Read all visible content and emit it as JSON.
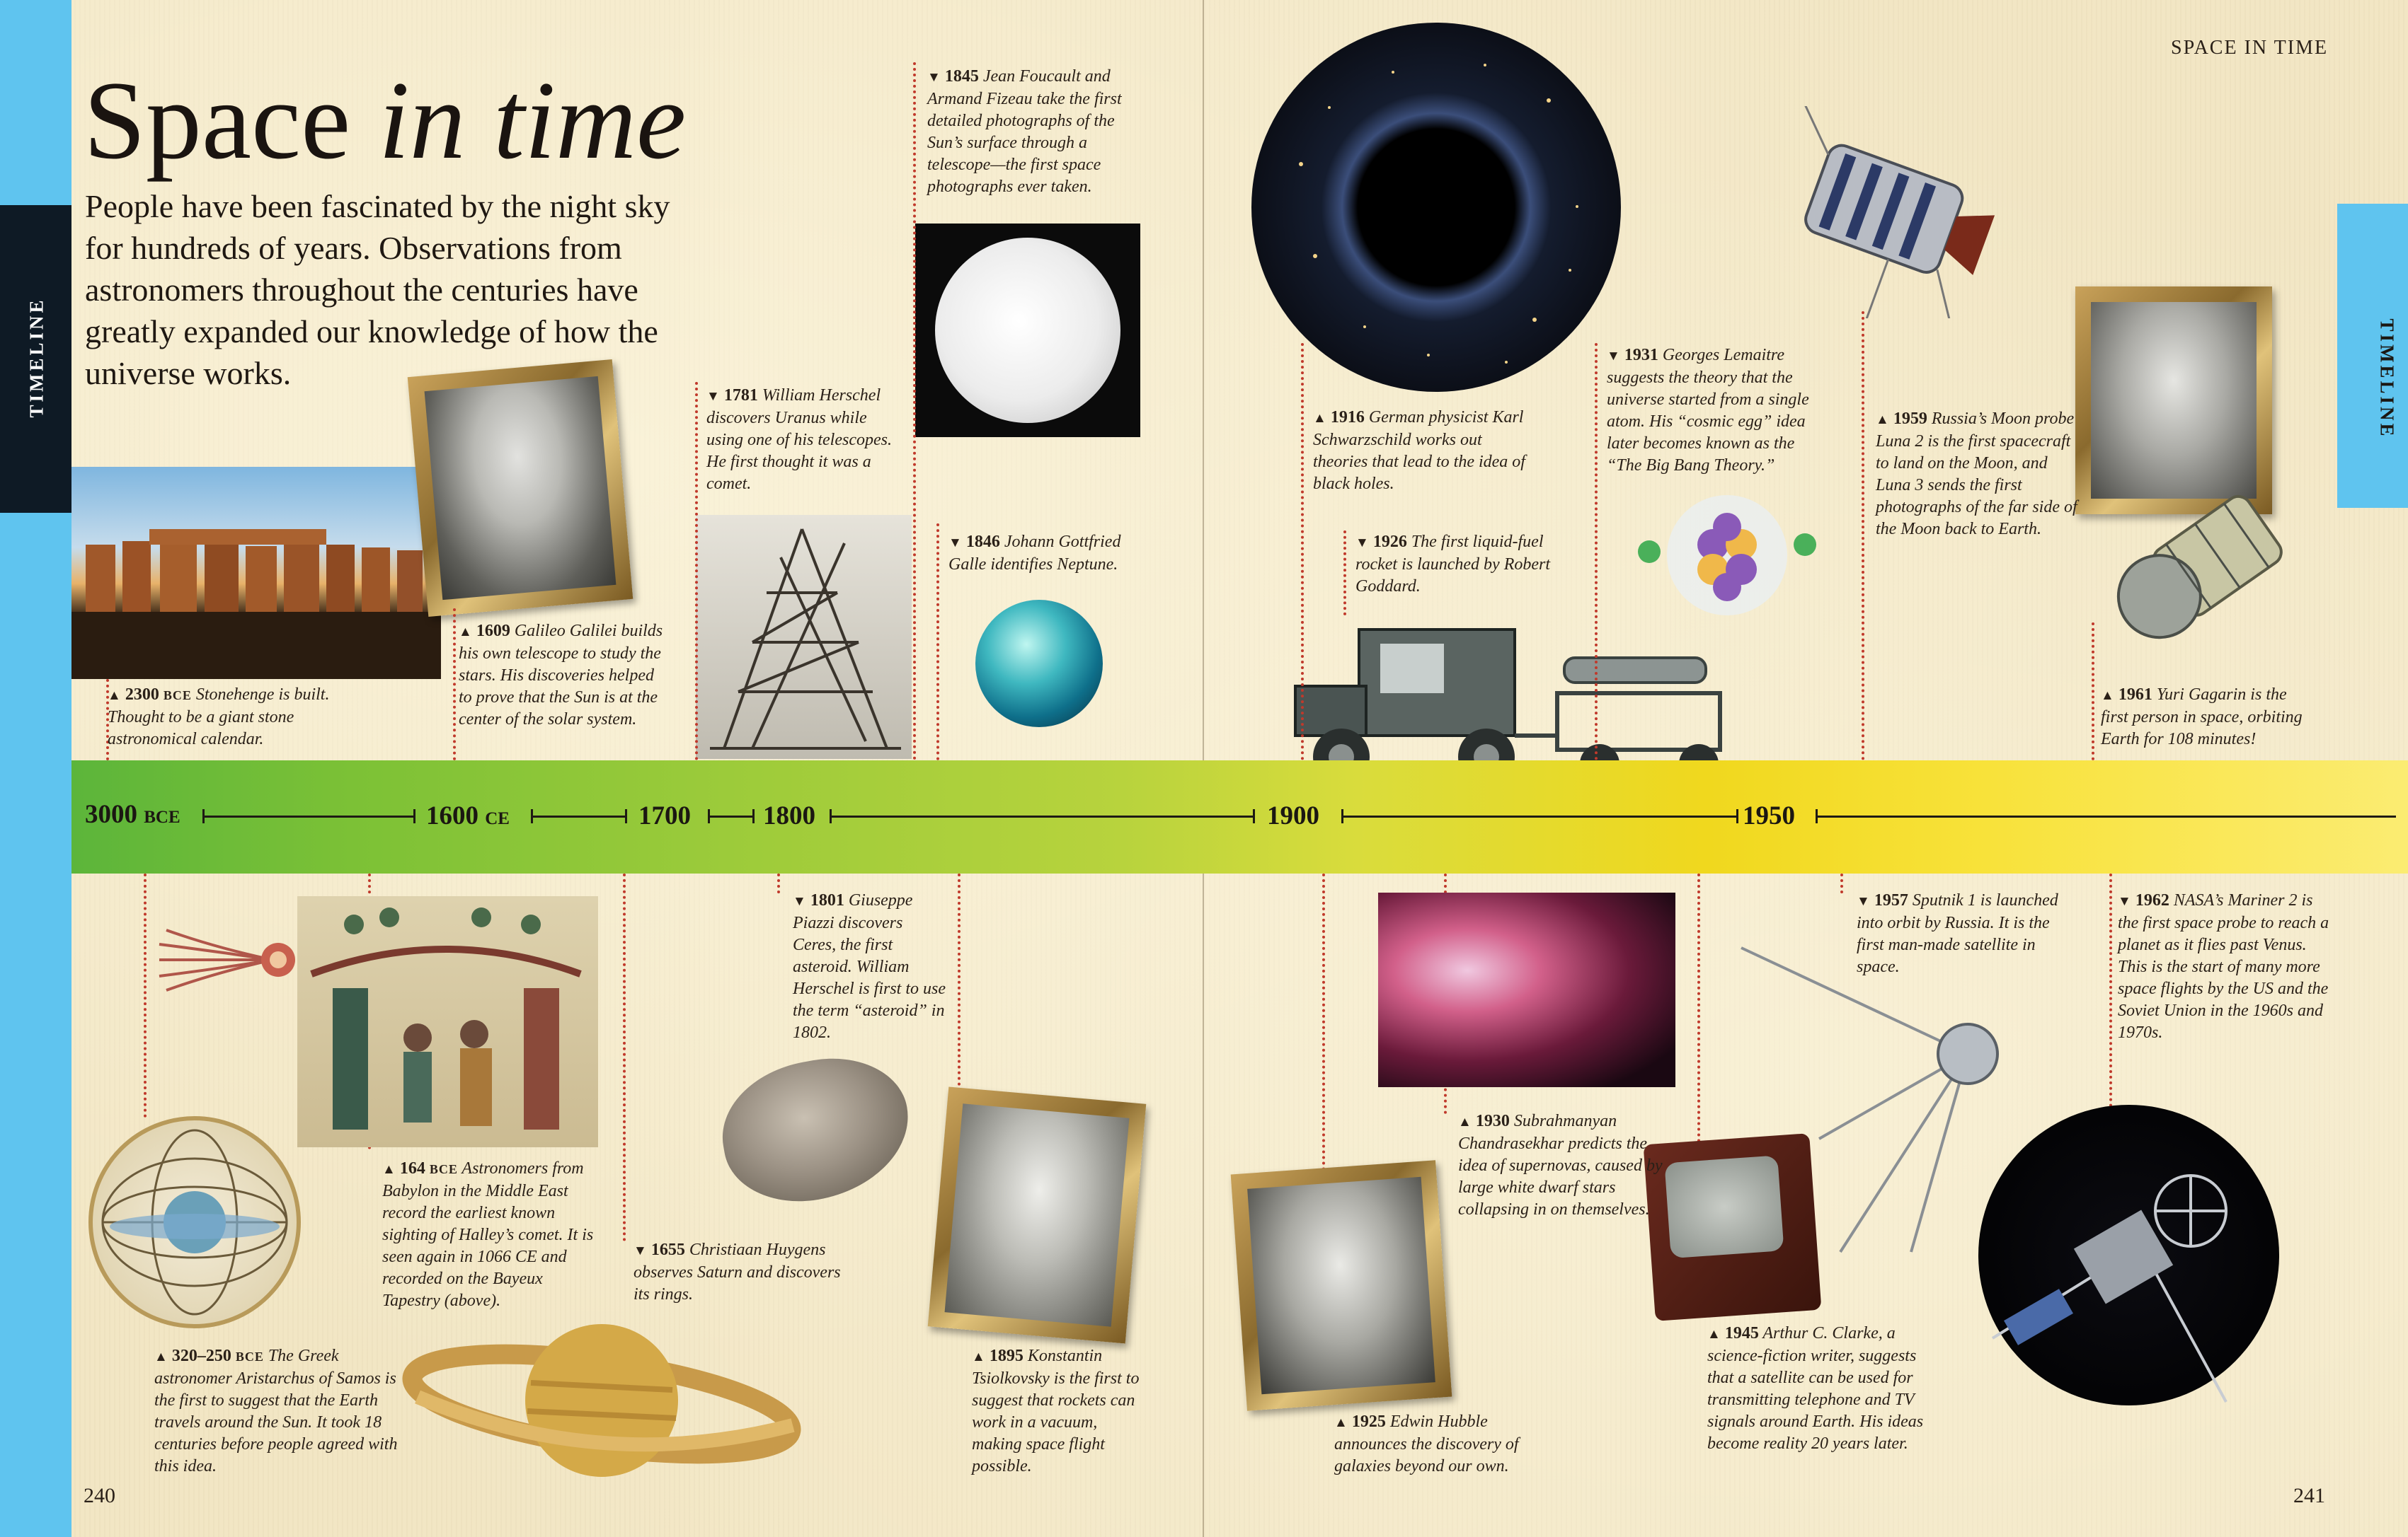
{
  "header": {
    "running_head": "SPACE IN TIME"
  },
  "side_tab": {
    "left_label": "TIMELINE",
    "right_label": "TIMELINE"
  },
  "title": {
    "main": "Space",
    "italic": "in time"
  },
  "intro": "People have been fascinated by the night sky for hundreds of years. Observations from astronomers throughout the centuries have greatly expanded our knowledge of how the universe works.",
  "timeline": {
    "labels": [
      {
        "year": "3000",
        "era": "BCE"
      },
      {
        "year": "1600",
        "era": "CE"
      },
      {
        "year": "1700",
        "era": ""
      },
      {
        "year": "1800",
        "era": ""
      },
      {
        "year": "1900",
        "era": ""
      },
      {
        "year": "1950",
        "era": ""
      }
    ]
  },
  "events": {
    "e2300": {
      "marker": "▲",
      "year": "2300",
      "era": "BCE",
      "text": "Stonehenge is built. Thought to be a giant stone astronomical calendar."
    },
    "e1609": {
      "marker": "▲",
      "year": "1609",
      "text": "Galileo Galilei builds his own telescope to study the stars. His discoveries helped to prove that the Sun is at the center of the solar system."
    },
    "e1781": {
      "marker": "▼",
      "year": "1781",
      "text": "William Herschel discovers Uranus while using one of his telescopes. He first thought it was a comet."
    },
    "e1845": {
      "marker": "▼",
      "year": "1845",
      "text": "Jean Foucault and Armand Fizeau take the first detailed photographs of the Sun’s surface through a telescope—the first space photographs ever taken."
    },
    "e1846": {
      "marker": "▼",
      "year": "1846",
      "text": "Johann Gottfried Galle identifies Neptune."
    },
    "e1916": {
      "marker": "▲",
      "year": "1916",
      "text": "German physicist Karl Schwarzschild works out theories that lead to the idea of black holes."
    },
    "e1926": {
      "marker": "▼",
      "year": "1926",
      "text": "The first liquid-fuel rocket is launched by Robert Goddard."
    },
    "e1931": {
      "marker": "▼",
      "year": "1931",
      "text": "Georges Lemaitre suggests the theory that the universe started from a single atom. His “cosmic egg” idea later becomes known as the “The Big Bang Theory.”"
    },
    "e1959": {
      "marker": "▲",
      "year": "1959",
      "text": "Russia’s Moon probe Luna 2 is the first spacecraft to land on the Moon, and Luna 3 sends the first photographs of the far side of the Moon back to Earth."
    },
    "e1961": {
      "marker": "▲",
      "year": "1961",
      "text": "Yuri Gagarin is the first person in space, orbiting Earth for 108 minutes!"
    },
    "e164": {
      "marker": "▲",
      "year": "164",
      "era": "BCE",
      "text": "Astronomers from Babylon in the Middle East record the earliest known sighting of Halley’s comet. It is seen again in 1066 CE and recorded on the Bayeux Tapestry (above)."
    },
    "e320": {
      "marker": "▲",
      "year": "320–250",
      "era": "BCE",
      "text": "The Greek astronomer Aristarchus of Samos is the first to suggest that the Earth travels around the Sun. It took 18 centuries before people agreed with this idea."
    },
    "e1655": {
      "marker": "▼",
      "year": "1655",
      "text": "Christiaan Huygens observes Saturn and discovers its rings."
    },
    "e1801": {
      "marker": "▼",
      "year": "1801",
      "text": "Giuseppe Piazzi discovers Ceres, the first asteroid. William Herschel is first to use the term “asteroid” in 1802."
    },
    "e1895": {
      "marker": "▲",
      "year": "1895",
      "text": "Konstantin Tsiolkovsky is the first to suggest that rockets can work in a vacuum, making space flight possible."
    },
    "e1925": {
      "marker": "▲",
      "year": "1925",
      "text": "Edwin Hubble announces the discovery of galaxies beyond our own."
    },
    "e1930": {
      "marker": "▲",
      "year": "1930",
      "text": "Subrahmanyan Chandrasekhar predicts the idea of supernovas, caused by large white dwarf stars collapsing in on themselves."
    },
    "e1945": {
      "marker": "▲",
      "year": "1945",
      "text": "Arthur C. Clarke, a science-fiction writer, suggests that a satellite can be used for transmitting telephone and TV signals around Earth. His ideas become reality 20 years later."
    },
    "e1957": {
      "marker": "▼",
      "year": "1957",
      "text": "Sputnik 1 is launched into orbit by Russia. It is the first man-made satellite in space."
    },
    "e1962": {
      "marker": "▼",
      "year": "1962",
      "text": "NASA’s Mariner 2 is the first space probe to reach a planet as it flies past Venus. This is the start of many more space flights by the US and the Soviet Union in the 1960s and 1970s."
    }
  },
  "folios": {
    "left": "240",
    "right": "241"
  },
  "colors": {
    "edge_blue": "#5fc4ef",
    "tab_dark": "#0e1a25",
    "dotted_red": "#c0392b",
    "band_green": "#5cb53a",
    "band_yellow": "#f8e23a"
  }
}
